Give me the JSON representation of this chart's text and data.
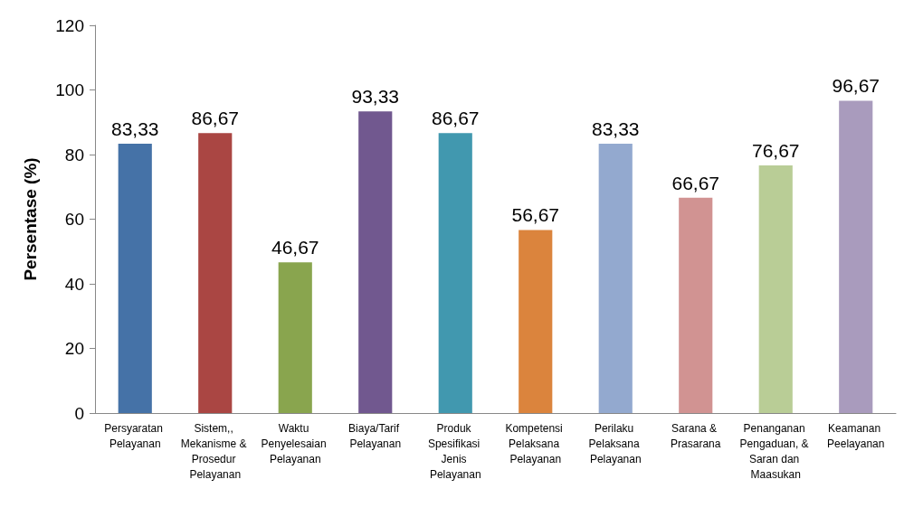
{
  "chart_data": {
    "type": "bar",
    "ylabel": "Persentase (%)",
    "categories": [
      "Persyaratan Pelayanan",
      "Sistem,, Mekanisme & Prosedur Pelayanan",
      "Waktu Penyelesaian Pelayanan",
      "Biaya/Tarif Pelayanan",
      "Produk Spesifikasi Jenis Pelayanan",
      "Kompetensi Pelaksana Pelayanan",
      "Perilaku Pelaksana Pelayanan",
      "Sarana & Prasarana",
      "Penanganan Pengaduan, & Saran dan Maasukan",
      "Keamanan Peelayanan"
    ],
    "values": [
      83.33,
      86.67,
      46.67,
      93.33,
      86.67,
      56.67,
      83.33,
      66.67,
      76.67,
      96.67
    ],
    "value_labels": [
      "83,33",
      "86,67",
      "46,67",
      "93,33",
      "86,67",
      "56,67",
      "83,33",
      "66,67",
      "76,67",
      "96,67"
    ],
    "colors": [
      "#4572a7",
      "#aa4643",
      "#89a54e",
      "#71588f",
      "#4198af",
      "#db843d",
      "#93a9cf",
      "#d19392",
      "#b9cd96",
      "#a99bbd"
    ],
    "ylim": [
      0,
      120
    ],
    "yticks": [
      0,
      20,
      40,
      60,
      80,
      100,
      120
    ],
    "grid": false
  }
}
